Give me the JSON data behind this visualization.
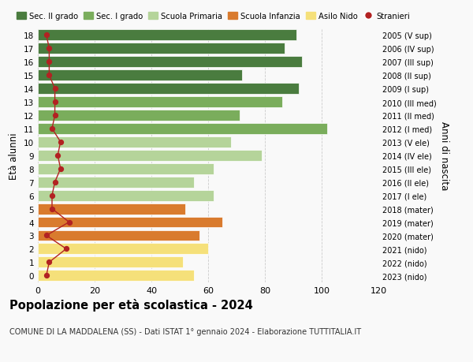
{
  "ages": [
    18,
    17,
    16,
    15,
    14,
    13,
    12,
    11,
    10,
    9,
    8,
    7,
    6,
    5,
    4,
    3,
    2,
    1,
    0
  ],
  "years": [
    "2005 (V sup)",
    "2006 (IV sup)",
    "2007 (III sup)",
    "2008 (II sup)",
    "2009 (I sup)",
    "2010 (III med)",
    "2011 (II med)",
    "2012 (I med)",
    "2013 (V ele)",
    "2014 (IV ele)",
    "2015 (III ele)",
    "2016 (II ele)",
    "2017 (I ele)",
    "2018 (mater)",
    "2019 (mater)",
    "2020 (mater)",
    "2021 (nido)",
    "2022 (nido)",
    "2023 (nido)"
  ],
  "bar_values": [
    91,
    87,
    93,
    72,
    92,
    86,
    71,
    102,
    68,
    79,
    62,
    55,
    62,
    52,
    65,
    57,
    60,
    51,
    55
  ],
  "bar_colors": [
    "#4a7c3f",
    "#4a7c3f",
    "#4a7c3f",
    "#4a7c3f",
    "#4a7c3f",
    "#7aad5c",
    "#7aad5c",
    "#7aad5c",
    "#b5d49a",
    "#b5d49a",
    "#b5d49a",
    "#b5d49a",
    "#b5d49a",
    "#d97b2e",
    "#d97b2e",
    "#d97b2e",
    "#f5e07a",
    "#f5e07a",
    "#f5e07a"
  ],
  "stranieri_values": [
    3,
    4,
    4,
    4,
    6,
    6,
    6,
    5,
    8,
    7,
    8,
    6,
    5,
    5,
    11,
    3,
    10,
    4,
    3
  ],
  "legend_labels": [
    "Sec. II grado",
    "Sec. I grado",
    "Scuola Primaria",
    "Scuola Infanzia",
    "Asilo Nido",
    "Stranieri"
  ],
  "legend_colors": [
    "#4a7c3f",
    "#7aad5c",
    "#b5d49a",
    "#d97b2e",
    "#f5e07a",
    "#b22222"
  ],
  "ylabel_left": "Età alunni",
  "ylabel_right": "Anni di nascita",
  "title": "Popolazione per età scolastica - 2024",
  "subtitle": "COMUNE DI LA MADDALENA (SS) - Dati ISTAT 1° gennaio 2024 - Elaborazione TUTTITALIA.IT",
  "xlim": [
    0,
    120
  ],
  "ylim": [
    -0.5,
    18.5
  ],
  "bg_color": "#f9f9f9",
  "grid_color": "#cccccc"
}
